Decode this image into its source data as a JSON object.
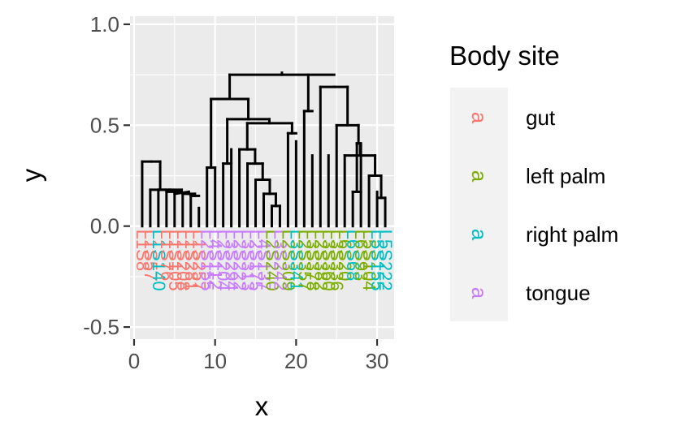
{
  "chart_data": {
    "type": "dendrogram",
    "xlabel": "x",
    "ylabel": "y",
    "xlim": [
      -0.5,
      32.1
    ],
    "ylim": [
      -0.56,
      1.04
    ],
    "x_ticks": [
      0,
      10,
      20,
      30
    ],
    "x_tick_labels": [
      "0",
      "10",
      "20",
      "30"
    ],
    "y_ticks": [
      -0.5,
      0.0,
      0.5,
      1.0
    ],
    "y_tick_labels": [
      "-0.5",
      "0.0",
      "0.5",
      "1.0"
    ],
    "grid": true,
    "panel_background": "#ebebeb",
    "legend": {
      "title": "Body site",
      "position": "right",
      "glyph": "a",
      "items": [
        {
          "label": "gut",
          "color": "#f8766d"
        },
        {
          "label": "left palm",
          "color": "#7cae00"
        },
        {
          "label": "right palm",
          "color": "#00bfc4"
        },
        {
          "label": "tongue",
          "color": "#c77cff"
        }
      ]
    },
    "leaves": [
      {
        "x": 1,
        "label": "L1S8",
        "group": "gut"
      },
      {
        "x": 2,
        "label": "L1S57",
        "group": "gut"
      },
      {
        "x": 3,
        "label": "L1S140",
        "group": "right palm"
      },
      {
        "x": 4,
        "label": "L1S76",
        "group": "gut"
      },
      {
        "x": 5,
        "label": "L1S105",
        "group": "gut"
      },
      {
        "x": 6,
        "label": "L1S208",
        "group": "gut"
      },
      {
        "x": 7,
        "label": "L1S281",
        "group": "gut"
      },
      {
        "x": 8,
        "label": "L1S257",
        "group": "gut"
      },
      {
        "x": 9,
        "label": "L2S155",
        "group": "tongue"
      },
      {
        "x": 10,
        "label": "L4S112",
        "group": "tongue"
      },
      {
        "x": 11,
        "label": "L2S204",
        "group": "tongue"
      },
      {
        "x": 12,
        "label": "L3S294",
        "group": "tongue"
      },
      {
        "x": 13,
        "label": "L2S222",
        "group": "tongue"
      },
      {
        "x": 14,
        "label": "L3S313",
        "group": "tongue"
      },
      {
        "x": 15,
        "label": "L2S175",
        "group": "tongue"
      },
      {
        "x": 16,
        "label": "L4S137",
        "group": "tongue"
      },
      {
        "x": 17,
        "label": "L2S240",
        "group": "left palm"
      },
      {
        "x": 18,
        "label": "L3S242",
        "group": "tongue"
      },
      {
        "x": 19,
        "label": "L2S309",
        "group": "left palm"
      },
      {
        "x": 20,
        "label": "L3S341",
        "group": "right palm"
      },
      {
        "x": 21,
        "label": "L2S357",
        "group": "left palm"
      },
      {
        "x": 22,
        "label": "L3S378",
        "group": "left palm"
      },
      {
        "x": 23,
        "label": "L2S382",
        "group": "left palm"
      },
      {
        "x": 24,
        "label": "L3S360",
        "group": "left palm"
      },
      {
        "x": 25,
        "label": "L3S336",
        "group": "left palm"
      },
      {
        "x": 26,
        "label": "L6S20",
        "group": "left palm"
      },
      {
        "x": 27,
        "label": "L6S68",
        "group": "right palm"
      },
      {
        "x": 28,
        "label": "L6S93",
        "group": "left palm"
      },
      {
        "x": 29,
        "label": "L5S104",
        "group": "left palm"
      },
      {
        "x": 30,
        "label": "L5S155",
        "group": "right palm"
      },
      {
        "x": 31,
        "label": "L5S222",
        "group": "right palm"
      }
    ],
    "segments": [
      [
        1,
        0,
        1,
        0.32
      ],
      [
        2,
        0,
        2,
        0.18
      ],
      [
        3,
        0,
        3,
        0.18
      ],
      [
        4,
        0,
        4,
        0.17
      ],
      [
        5,
        0,
        5,
        0.16
      ],
      [
        6,
        0,
        6,
        0.16
      ],
      [
        7,
        0,
        7,
        0.15
      ],
      [
        8,
        0,
        8,
        0.09
      ],
      [
        7,
        0.15,
        8,
        0.15
      ],
      [
        7.5,
        0.15,
        7.5,
        0.16
      ],
      [
        6,
        0.16,
        7.5,
        0.16
      ],
      [
        6.75,
        0.16,
        6.75,
        0.17
      ],
      [
        5,
        0.16,
        6.75,
        0.17
      ],
      [
        4,
        0.17,
        5.875,
        0.17
      ],
      [
        5.875,
        0.17,
        5.875,
        0.18
      ],
      [
        3,
        0.18,
        5.875,
        0.18
      ],
      [
        4.44,
        0.18,
        4.44,
        0.18
      ],
      [
        2,
        0.18,
        4.44,
        0.18
      ],
      [
        3.22,
        0.18,
        3.22,
        0.32
      ],
      [
        1,
        0.32,
        3.22,
        0.32
      ],
      [
        2.11,
        0.32,
        2.11,
        0.32
      ],
      [
        9,
        0,
        9,
        0.29
      ],
      [
        10,
        0,
        10,
        0.29
      ],
      [
        11,
        0,
        11,
        0.31
      ],
      [
        12,
        0,
        12,
        0.38
      ],
      [
        13,
        0,
        13,
        0.38
      ],
      [
        14,
        0,
        14,
        0.31
      ],
      [
        15,
        0,
        15,
        0.23
      ],
      [
        16,
        0,
        16,
        0.16
      ],
      [
        17,
        0,
        17,
        0.1
      ],
      [
        18,
        0,
        18,
        0.1
      ],
      [
        17,
        0.1,
        18,
        0.1
      ],
      [
        17.5,
        0.1,
        17.5,
        0.16
      ],
      [
        16,
        0.16,
        17.5,
        0.16
      ],
      [
        16.75,
        0.16,
        16.75,
        0.23
      ],
      [
        15,
        0.23,
        16.75,
        0.23
      ],
      [
        15.875,
        0.23,
        15.875,
        0.31
      ],
      [
        14,
        0.31,
        15.875,
        0.31
      ],
      [
        14.94,
        0.31,
        14.94,
        0.38
      ],
      [
        13,
        0.38,
        14.94,
        0.38
      ],
      [
        13.97,
        0.38,
        13.97,
        0.51
      ],
      [
        11,
        0.31,
        12,
        0.31
      ],
      [
        11.5,
        0.31,
        11.5,
        0.53
      ],
      [
        9,
        0.29,
        10,
        0.29
      ],
      [
        9.5,
        0.29,
        9.5,
        0.63
      ],
      [
        19,
        0,
        19,
        0.46
      ],
      [
        20,
        0,
        20,
        0.42
      ],
      [
        19,
        0.46,
        20,
        0.46
      ],
      [
        19.5,
        0.46,
        19.5,
        0.51
      ],
      [
        13.97,
        0.51,
        19.5,
        0.51
      ],
      [
        16.7,
        0.51,
        16.7,
        0.53
      ],
      [
        11.5,
        0.53,
        16.7,
        0.53
      ],
      [
        14.1,
        0.53,
        14.1,
        0.63
      ],
      [
        9.5,
        0.63,
        14.1,
        0.63
      ],
      [
        11.8,
        0.63,
        11.8,
        0.75
      ],
      [
        21,
        0,
        21,
        0.57
      ],
      [
        22,
        0,
        22,
        0.35
      ],
      [
        23,
        0,
        23,
        0.69
      ],
      [
        24,
        0,
        24,
        0.35
      ],
      [
        25,
        0,
        25,
        0.5
      ],
      [
        26,
        0,
        26,
        0.35
      ],
      [
        27,
        0,
        27,
        0.17
      ],
      [
        28,
        0,
        28,
        0.41
      ],
      [
        29,
        0,
        29,
        0.25
      ],
      [
        30,
        0,
        30,
        0.17
      ],
      [
        31,
        0,
        31,
        0.14
      ],
      [
        30,
        0.14,
        31,
        0.14
      ],
      [
        30.5,
        0.14,
        30.5,
        0.25
      ],
      [
        29,
        0.25,
        30.5,
        0.25
      ],
      [
        29.75,
        0.25,
        29.75,
        0.35
      ],
      [
        27,
        0.17,
        28,
        0.17
      ],
      [
        27.5,
        0.17,
        27.5,
        0.41
      ],
      [
        26,
        0.35,
        29.75,
        0.35
      ],
      [
        27.9,
        0.35,
        27.9,
        0.41
      ],
      [
        27.5,
        0.41,
        27.9,
        0.41
      ],
      [
        27.7,
        0.41,
        27.7,
        0.5
      ],
      [
        25,
        0.5,
        27.7,
        0.5
      ],
      [
        26.35,
        0.5,
        26.35,
        0.69
      ],
      [
        23,
        0.69,
        26.35,
        0.69
      ],
      [
        24.7,
        0.69,
        24.7,
        0.69
      ],
      [
        21,
        0.57,
        22,
        0.57
      ],
      [
        21.5,
        0.57,
        21.5,
        0.75
      ],
      [
        11.8,
        0.75,
        24.7,
        0.75
      ],
      [
        18.25,
        0.75,
        18.25,
        0.76
      ]
    ]
  }
}
